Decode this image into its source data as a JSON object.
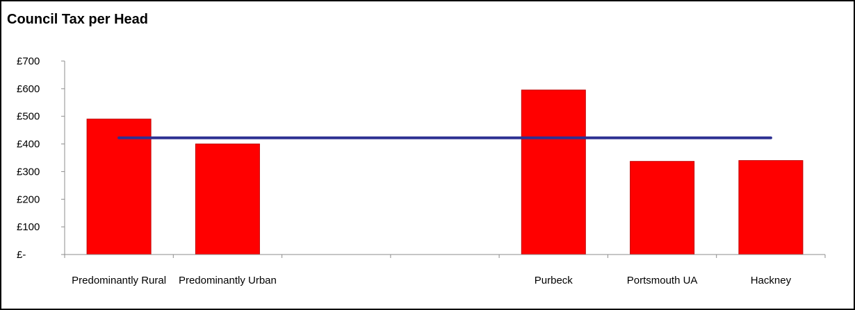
{
  "chart_data": {
    "type": "bar",
    "title": "Council Tax per Head",
    "xlabel": "",
    "ylabel": "",
    "categories": [
      "Predominantly Rural",
      "Predominantly Urban",
      "",
      "",
      "Purbeck",
      "Portsmouth UA",
      "Hackney"
    ],
    "series": [
      {
        "type": "bar",
        "values": [
          490,
          400,
          null,
          null,
          595,
          337,
          340
        ]
      },
      {
        "type": "line",
        "values": [
          422,
          422,
          422,
          422,
          422,
          422,
          422
        ]
      }
    ],
    "yticks": [
      {
        "value": 0,
        "label": "£-"
      },
      {
        "value": 100,
        "label": "£100"
      },
      {
        "value": 200,
        "label": "£200"
      },
      {
        "value": 300,
        "label": "£300"
      },
      {
        "value": 400,
        "label": "£400"
      },
      {
        "value": 500,
        "label": "£500"
      },
      {
        "value": 600,
        "label": "£600"
      },
      {
        "value": 700,
        "label": "£700"
      }
    ],
    "ylim": [
      0,
      700
    ],
    "grid": false,
    "legend": "none",
    "colors": {
      "bar": "#ff0000",
      "bar_edge": "#c00000",
      "line": "#2e3192",
      "axis": "#8c8c8c"
    }
  }
}
